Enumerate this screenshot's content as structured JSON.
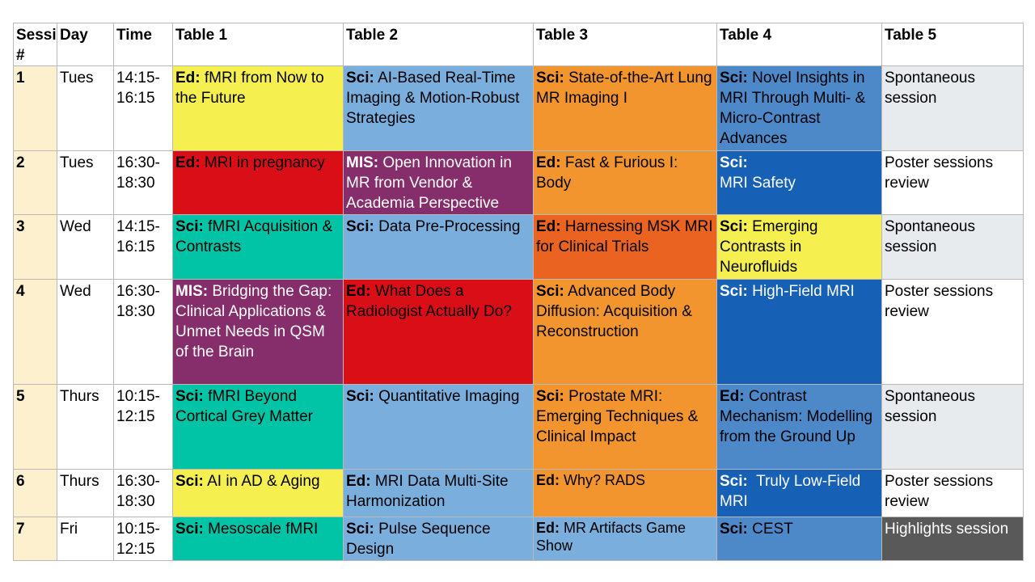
{
  "headers": [
    "Session #",
    "Day",
    "Time",
    "Table 1",
    "Table 2",
    "Table 3",
    "Table 4",
    "Table 5"
  ],
  "rows": [
    {
      "session": "1",
      "day": "Tues",
      "time": "14:15-16:15",
      "t1": {
        "tag": "Ed:",
        "text": " fMRI from Now to the Future"
      },
      "t2": {
        "tag": "Sci:",
        "text": " AI-Based Real-Time Imaging & Motion-Robust Strategies"
      },
      "t3": {
        "tag": "Sci:",
        "text": " State-of-the-Art Lung MR Imaging I"
      },
      "t4": {
        "tag": "Sci:",
        "text": " Novel Insights in MRI Through Multi- & Micro-Contrast Advances"
      },
      "t5": "Spontaneous session"
    },
    {
      "session": "2",
      "day": "Tues",
      "time": "16:30-18:30",
      "t1": {
        "tag": "Ed:",
        "text": " MRI in pregnancy"
      },
      "t2": {
        "tag": "MIS:",
        "text": " Open Innovation in MR from Vendor & Academia Perspective"
      },
      "t3": {
        "tag": "Ed:",
        "text": " Fast & Furious I: Body"
      },
      "t4": {
        "tag": "Sci:",
        "text": "MRI Safety"
      },
      "t5": "Poster sessions review"
    },
    {
      "session": "3",
      "day": "Wed",
      "time": "14:15-16:15",
      "t1": {
        "tag": "Sci:",
        "text": " fMRI Acquisition & Contrasts"
      },
      "t2": {
        "tag": "Sci:",
        "text": " Data Pre-Processing"
      },
      "t3": {
        "tag": "Ed:",
        "text": " Harnessing MSK MRI for Clinical Trials"
      },
      "t4": {
        "tag": "Sci:",
        "text": " Emerging Contrasts in Neurofluids"
      },
      "t5": "Spontaneous session"
    },
    {
      "session": "4",
      "day": "Wed",
      "time": "16:30-18:30",
      "t1": {
        "tag": "MIS:",
        "text": " Bridging the Gap: Clinical Applications & Unmet Needs in QSM of the Brain"
      },
      "t2": {
        "tag": "Ed:",
        "text": " What Does a Radiologist Actually Do?"
      },
      "t3": {
        "tag": "Sci:",
        "text": " Advanced Body Diffusion: Acquisition & Reconstruction"
      },
      "t4": {
        "tag": "Sci:",
        "text": " High-Field MRI"
      },
      "t5": "Poster sessions review"
    },
    {
      "session": "5",
      "day": "Thurs",
      "time": "10:15-12:15",
      "t1": {
        "tag": "Sci:",
        "text": " fMRI Beyond Cortical Grey Matter"
      },
      "t2": {
        "tag": "Sci:",
        "text": " Quantitative Imaging"
      },
      "t3": {
        "tag": "Sci:",
        "text": " Prostate MRI: Emerging Techniques & Clinical Impact"
      },
      "t4": {
        "tag": "Ed:",
        "text": " Contrast Mechanism: Modelling from the Ground Up"
      },
      "t5": "Spontaneous session"
    },
    {
      "session": "6",
      "day": "Thurs",
      "time": "16:30-18:30",
      "t1": {
        "tag": "Sci:",
        "text": " AI in AD & Aging"
      },
      "t2": {
        "tag": "Ed:",
        "text": " MRI Data Multi-Site Harmonization"
      },
      "t3": {
        "tag": "Ed:",
        "text": " Why? RADS"
      },
      "t4": {
        "tag": "Sci:",
        "text": "  Truly Low-Field MRI"
      },
      "t5": "Poster sessions review"
    },
    {
      "session": "7",
      "day": "Fri",
      "time": "10:15-12:15",
      "t1": {
        "tag": "Sci:",
        "text": " Mesoscale fMRI"
      },
      "t2": {
        "tag": "Sci:",
        "text": " Pulse Sequence Design"
      },
      "t3": {
        "tag": "Ed:",
        "text": " MR Artifacts Game Show"
      },
      "t4": {
        "tag": "Sci:",
        "text": " CEST"
      },
      "t5": "Highlights session"
    }
  ],
  "colors": {
    "session_col": "#fdf0cf",
    "yellow": "#f5ef50",
    "light_blue": "#7aaedd",
    "orange": "#f3952f",
    "steel_blue": "#4d89c9",
    "red": "#da0e17",
    "purple": "#862e6b",
    "teal": "#00c4a5",
    "deep_orange": "#ea6320",
    "royal_blue": "#1660b5",
    "grey": "#e8ebee",
    "dark_grey": "#595959"
  }
}
